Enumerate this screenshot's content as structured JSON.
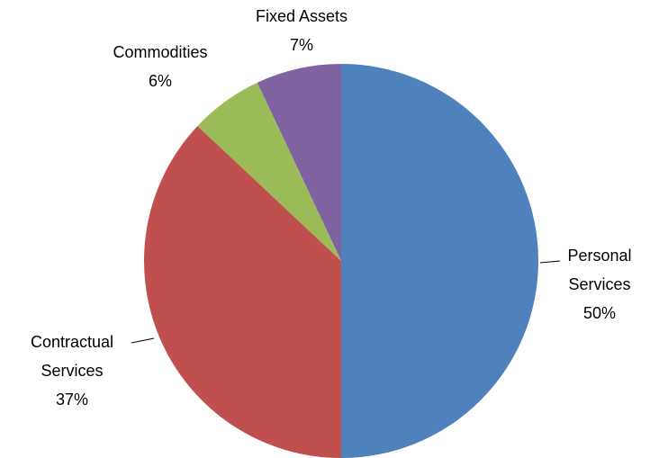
{
  "chart_data": {
    "type": "pie",
    "categories": [
      "Personal Services",
      "Contractual Services",
      "Commodities",
      "Fixed Assets"
    ],
    "values": [
      50,
      37,
      6,
      7
    ],
    "value_labels": [
      "50%",
      "37%",
      "6%",
      "7%"
    ],
    "colors": [
      "#4f81bd",
      "#c0504d",
      "#9bbb59",
      "#8064a2"
    ]
  }
}
